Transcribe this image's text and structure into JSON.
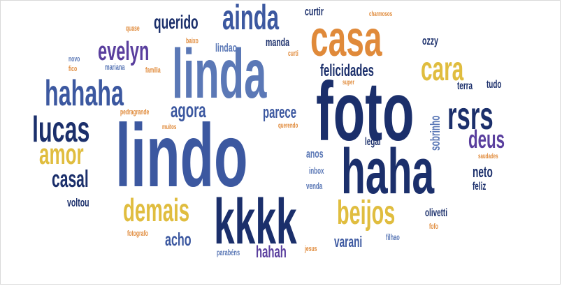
{
  "words": {
    "lindo": "lindo",
    "foto": "foto",
    "linda": "linda",
    "haha": "haha",
    "kkkk": "kkkk",
    "casa": "casa",
    "hahaha": "hahaha",
    "ainda": "ainda",
    "rsrs": "rsrs",
    "lucas": "lucas",
    "cara": "cara",
    "evelyn": "evelyn",
    "amor": "amor",
    "demais": "demais",
    "beijos": "beijos",
    "deus": "deus",
    "casal": "casal",
    "querido": "querido",
    "felicidades": "felicidades",
    "agora": "agora",
    "parece": "parece",
    "acho": "acho",
    "hahah": "hahah",
    "varani": "varani",
    "neto": "neto",
    "sobrinho": "sobrinho",
    "curtir": "curtir",
    "lindao": "lindao",
    "manda": "manda",
    "ozzy": "ozzy",
    "terra": "terra",
    "tudo": "tudo",
    "anos": "anos",
    "legal": "legal",
    "inbox": "inbox",
    "venda": "venda",
    "feliz": "feliz",
    "voltou": "voltou",
    "olivetti": "olivetti",
    "fofo": "fofo",
    "filhao": "filhao",
    "jesus": "jesus",
    "parabens": "parabéns",
    "fotografo": "fotografo",
    "quase": "quase",
    "baixo": "baixo",
    "curti": "curti",
    "charmosos": "charmosos",
    "novo": "novo",
    "fico": "fico",
    "mariana": "mariana",
    "familia": "família",
    "super": "super",
    "pedragrande": "pedragrande",
    "muitos": "muitos",
    "querendo": "querendo",
    "saudades": "saudades"
  },
  "colors": {
    "navy": "#1b2f6b",
    "blue": "#3c58a0",
    "mid": "#5b78b6",
    "gold": "#e0bd3f",
    "orange": "#e08a3a",
    "purple": "#5a3f9e",
    "tan": "#d8a34b"
  }
}
